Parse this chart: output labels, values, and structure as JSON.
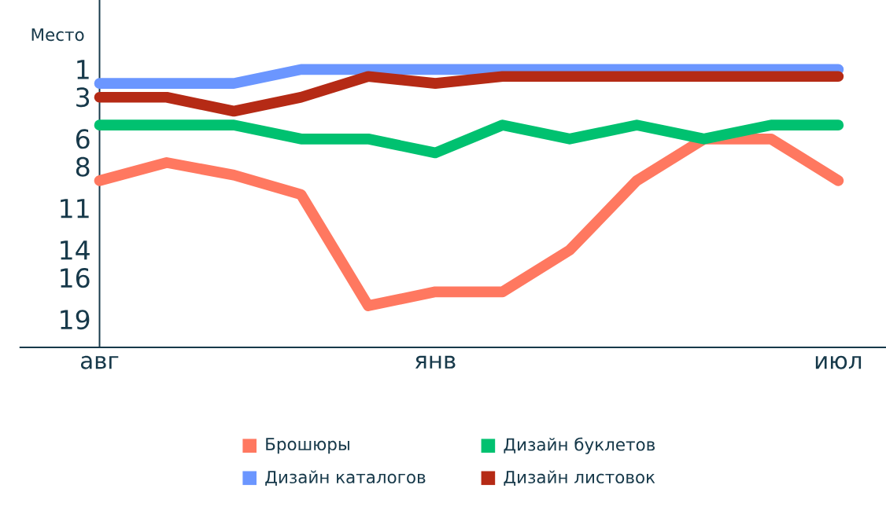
{
  "chart_data": {
    "type": "line",
    "ylabel": "Место",
    "categories": [
      "авг",
      null,
      null,
      null,
      null,
      "янв",
      null,
      null,
      null,
      null,
      null,
      "июл"
    ],
    "ylim": [
      21,
      -4
    ],
    "yticks": [
      1,
      3,
      6,
      8,
      11,
      14,
      16,
      19
    ],
    "legend": "bottom",
    "marker": "none",
    "line_style": "solid",
    "series": [
      {
        "name": "Брошюры",
        "color": "#ff7860",
        "values": [
          9,
          7.7,
          8.6,
          10,
          18,
          17,
          17,
          14,
          9,
          6,
          6,
          9
        ]
      },
      {
        "name": "Дизайн каталогов",
        "color": "#6b96ff",
        "values": [
          2,
          2,
          2,
          1,
          1,
          1,
          1,
          1,
          1,
          1,
          1,
          1
        ]
      },
      {
        "name": "Дизайн буклетов",
        "color": "#00c170",
        "values": [
          5,
          5,
          5,
          6,
          6,
          7,
          5,
          6,
          5,
          6,
          5,
          5
        ]
      },
      {
        "name": "Дизайн листовок",
        "color": "#b52a15",
        "values": [
          3,
          3,
          4,
          3,
          1.5,
          2,
          1.5,
          1.5,
          1.5,
          1.5,
          1.5,
          1.5
        ]
      }
    ]
  }
}
